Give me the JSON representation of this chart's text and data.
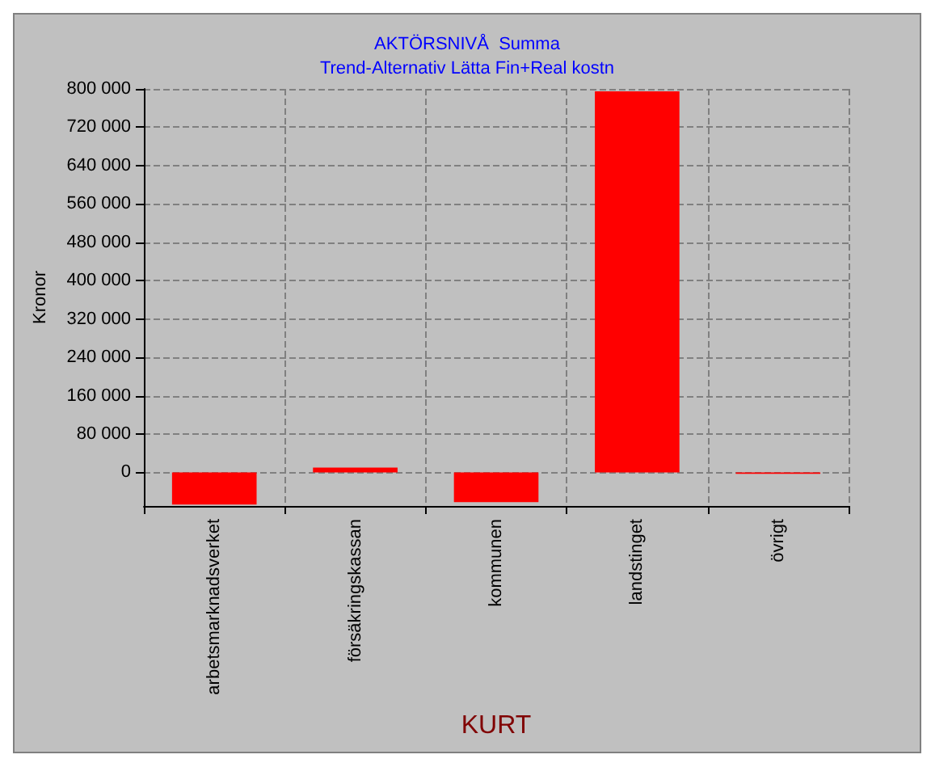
{
  "chart_data": {
    "type": "bar",
    "title": "AKTÖRSNIVÅ  Summa",
    "subtitle": "Trend-Alternativ Lätta Fin+Real kostn",
    "xlabel": "KURT",
    "ylabel": "Kronor",
    "categories": [
      "arbetsmarknadsverket",
      "försäkringskassan",
      "kommunen",
      "landstinget",
      "övrigt"
    ],
    "values": [
      -67000,
      10000,
      -62000,
      795000,
      -3000
    ],
    "color": "#ff0000",
    "ylim": [
      -70000,
      800000
    ],
    "yticks": [
      {
        "value": 0,
        "label": "0"
      },
      {
        "value": 80000,
        "label": "80 000"
      },
      {
        "value": 160000,
        "label": "160 000"
      },
      {
        "value": 240000,
        "label": "240 000"
      },
      {
        "value": 320000,
        "label": "320 000"
      },
      {
        "value": 400000,
        "label": "400 000"
      },
      {
        "value": 480000,
        "label": "480 000"
      },
      {
        "value": 560000,
        "label": "560 000"
      },
      {
        "value": 640000,
        "label": "640 000"
      },
      {
        "value": 720000,
        "label": "720 000"
      },
      {
        "value": 800000,
        "label": "800 000"
      }
    ],
    "grid": true
  }
}
